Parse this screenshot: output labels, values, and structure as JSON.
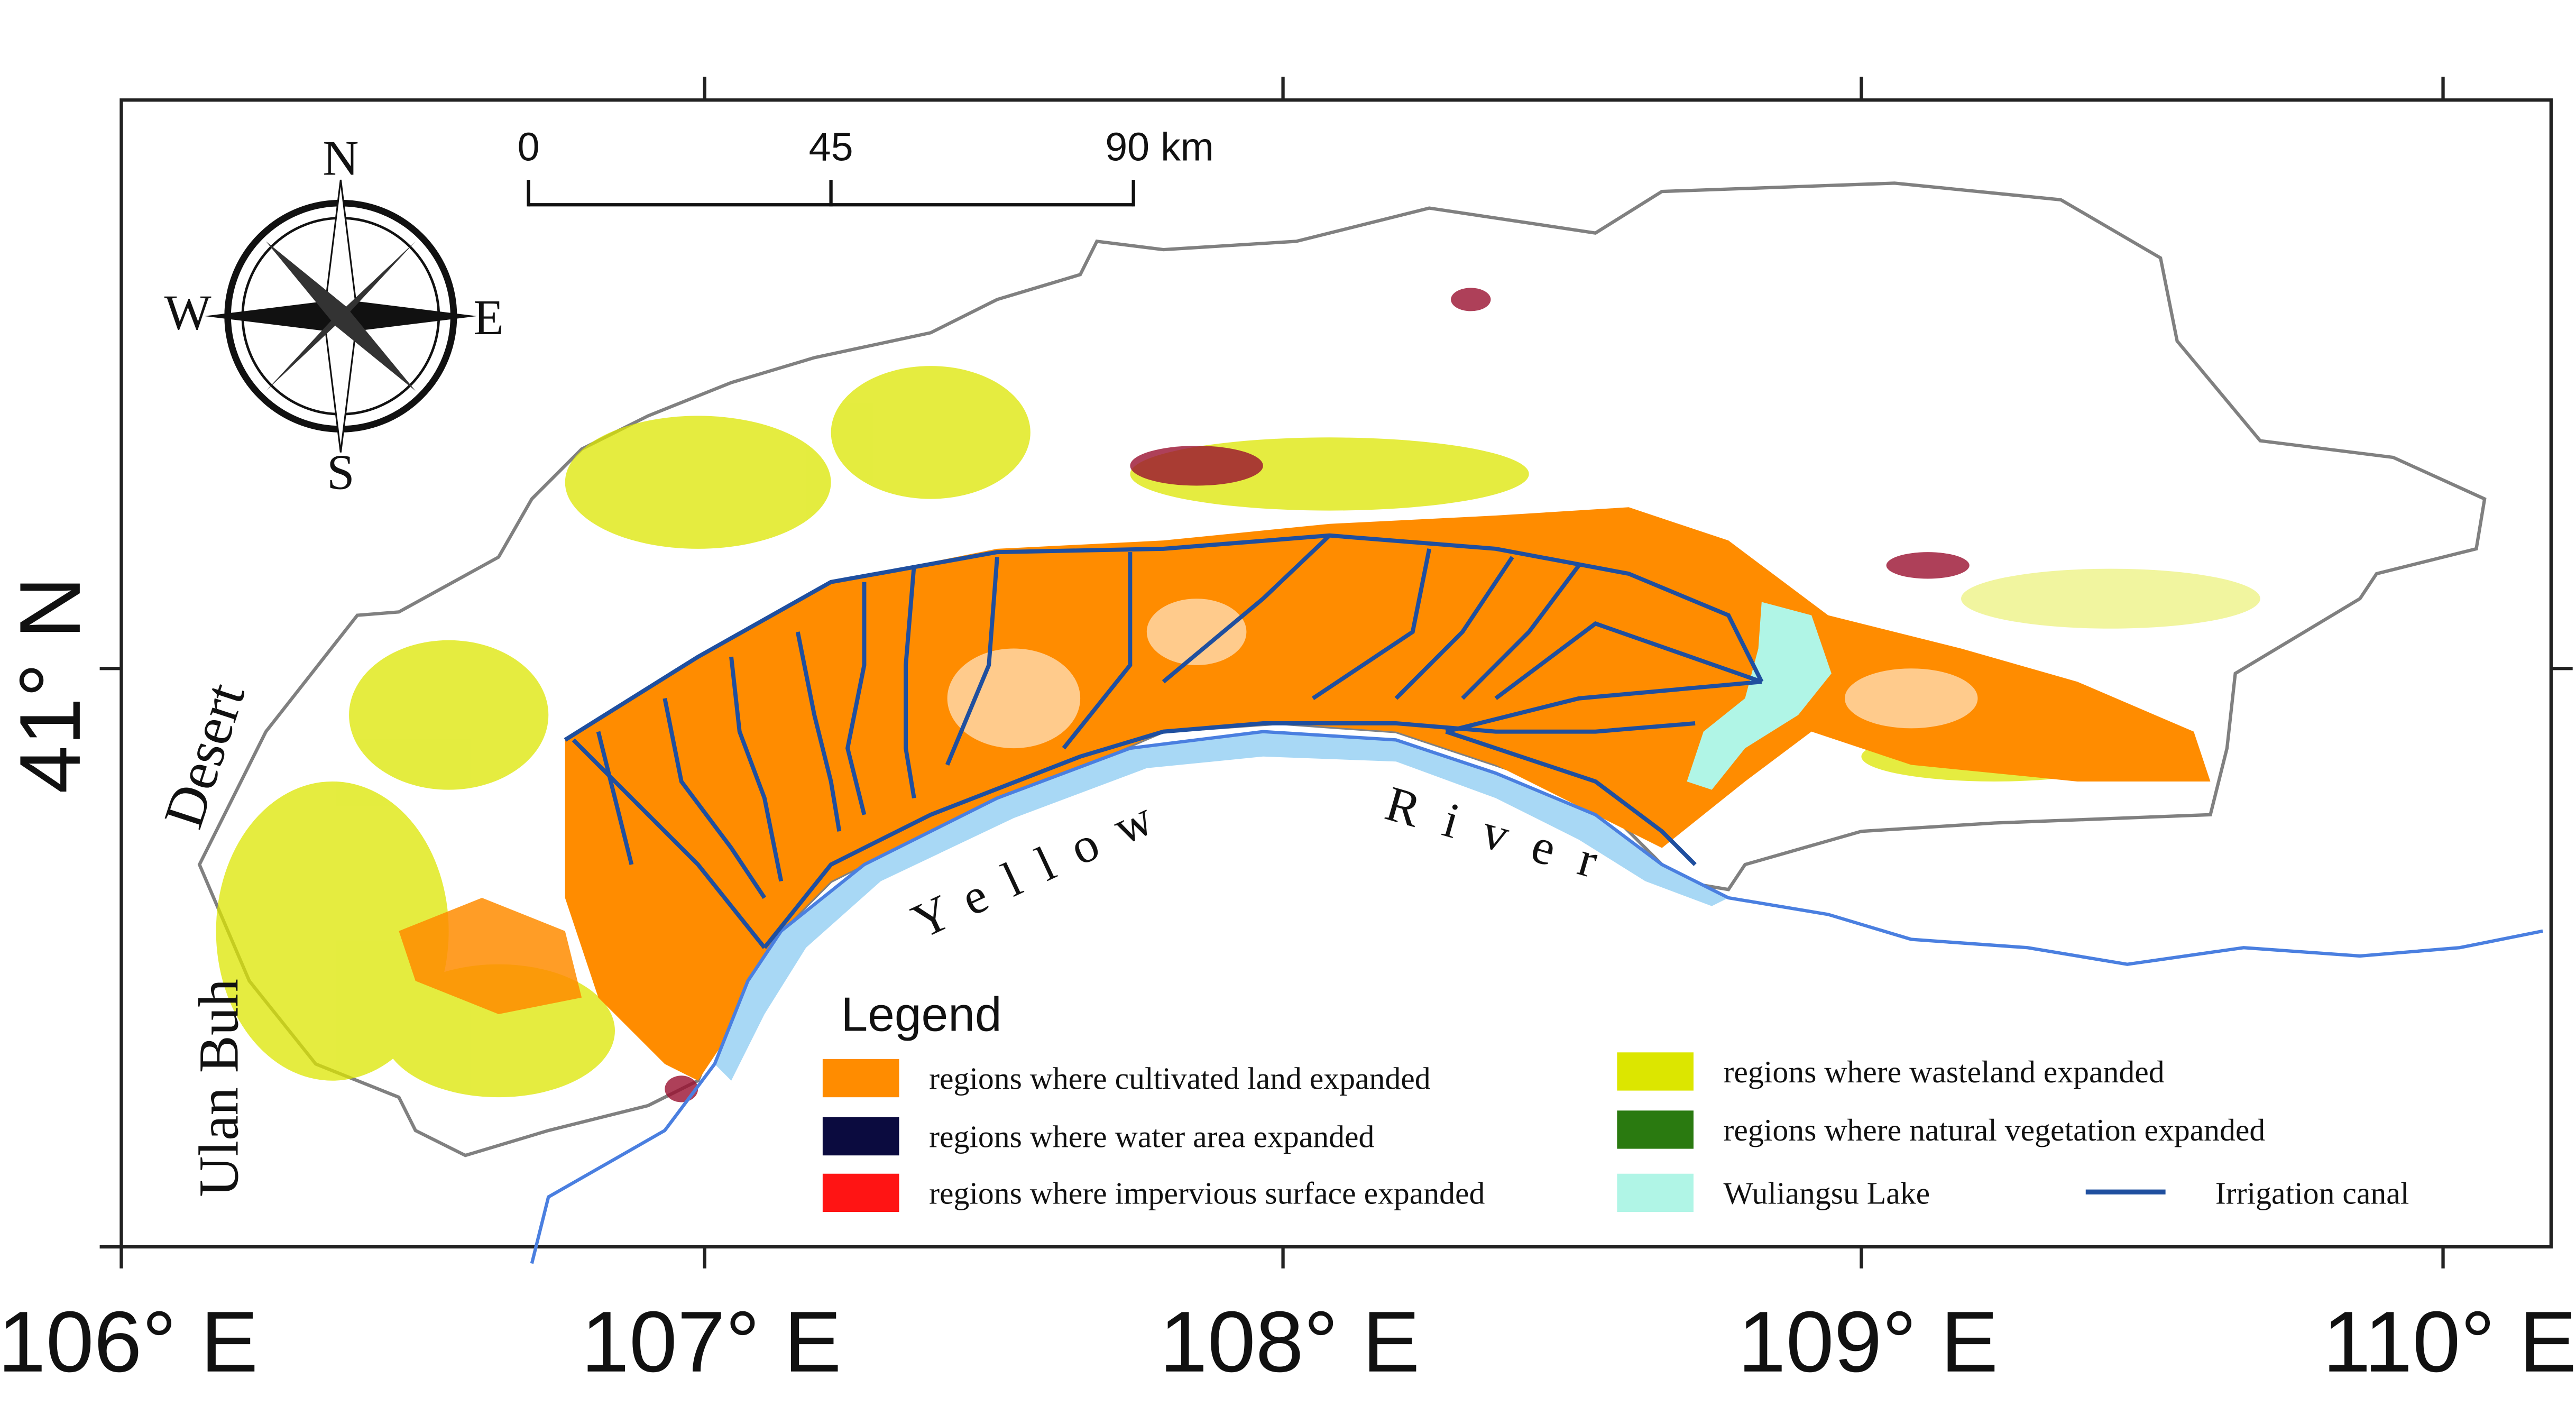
{
  "map": {
    "x_axis_labels": [
      "106° E",
      "107° E",
      "108° E",
      "109° E",
      "110° E"
    ],
    "y_axis_label": "41° N",
    "scale_bar": [
      "0",
      "45",
      "90 km"
    ],
    "compass": {
      "north": "N",
      "south": "S",
      "west": "W",
      "east": "E"
    },
    "place_labels": {
      "desert_1": "Ulan Buh",
      "desert_2": "Desert",
      "river_1": "Yellow",
      "river_2": "River"
    },
    "legend": {
      "title": "Legend",
      "items": [
        {
          "label": "regions where cultivated land expanded",
          "color": "#ff8c00",
          "symbol": "rect"
        },
        {
          "label": "regions where water area expanded",
          "color": "#0b0b3f",
          "symbol": "rect"
        },
        {
          "label": "regions where impervious surface expanded",
          "color": "#ff1414",
          "symbol": "rect"
        },
        {
          "label": "regions where wasteland expanded",
          "color": "#dce600",
          "symbol": "rect"
        },
        {
          "label": "regions where natural vegetation expanded",
          "color": "#2a7a10",
          "symbol": "rect"
        },
        {
          "label": "Wuliangsu Lake",
          "color": "#b0f5e6",
          "symbol": "rect"
        },
        {
          "label": "Irrigation canal",
          "color": "#1f4f9f",
          "symbol": "line"
        }
      ]
    }
  }
}
